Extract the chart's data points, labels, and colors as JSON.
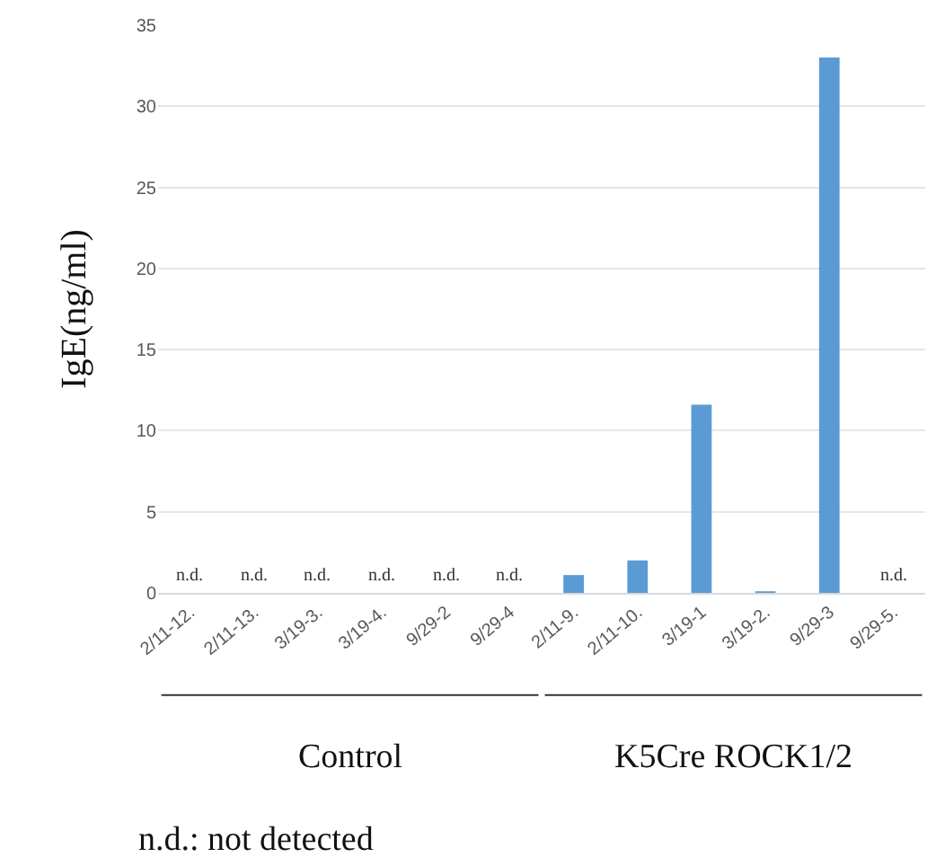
{
  "chart_data": {
    "type": "bar",
    "ylabel": "IgE(ng/ml)",
    "categories": [
      "2/11-12.",
      "2/11-13.",
      "3/19-3.",
      "3/19-4.",
      "9/29-2",
      "9/29-4",
      "2/11-9.",
      "2/11-10.",
      "3/19-1",
      "3/19-2.",
      "9/29-3",
      "9/29-5."
    ],
    "values": [
      null,
      null,
      null,
      null,
      null,
      null,
      1.1,
      2.0,
      11.6,
      0.1,
      33.0,
      null
    ],
    "value_labels": [
      "n.d.",
      "n.d.",
      "n.d.",
      "n.d.",
      "n.d.",
      "n.d.",
      null,
      null,
      null,
      null,
      null,
      "n.d."
    ],
    "color": "#5b9bd5",
    "ylim": [
      0,
      35
    ],
    "yticks": [
      0,
      5,
      10,
      15,
      20,
      25,
      30,
      35
    ],
    "grid": "y",
    "annotations": [
      "Control",
      "K5Cre ROCK1/2",
      "n.d.: not detected"
    ]
  }
}
